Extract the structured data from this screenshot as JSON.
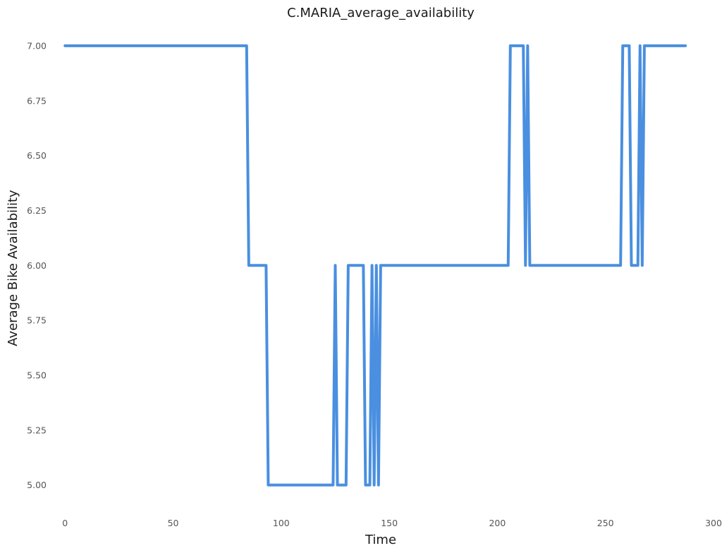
{
  "chart_data": {
    "type": "line",
    "title": "C.MARIA_average_availability",
    "xlabel": "Time",
    "ylabel": "Average Bike Availability",
    "xlim": [
      -4,
      300
    ],
    "ylim": [
      4.88,
      7.08
    ],
    "xticks": [
      0,
      50,
      100,
      150,
      200,
      250,
      300
    ],
    "yticks": [
      5.0,
      5.25,
      5.5,
      5.75,
      6.0,
      6.25,
      6.5,
      6.75,
      7.0
    ],
    "ytick_labels": [
      "5.00",
      "5.25",
      "5.50",
      "5.75",
      "6.00",
      "6.25",
      "6.50",
      "6.75",
      "7.00"
    ],
    "grid": false,
    "line_color": "#4a8fe0",
    "series": [
      {
        "x": [
          0,
          84,
          85,
          93,
          94,
          124,
          125,
          126,
          130,
          131,
          138,
          139,
          141,
          142,
          143,
          144,
          145,
          146,
          205,
          206,
          212,
          213,
          214,
          215,
          257,
          258,
          261,
          262,
          265,
          266,
          267,
          268,
          287
        ],
        "y": [
          7,
          7,
          6,
          6,
          5,
          5,
          6,
          5,
          5,
          6,
          6,
          5,
          5,
          6,
          5,
          6,
          5,
          6,
          6,
          7,
          7,
          6,
          7,
          6,
          6,
          7,
          7,
          6,
          6,
          7,
          6,
          7,
          7
        ]
      }
    ]
  }
}
